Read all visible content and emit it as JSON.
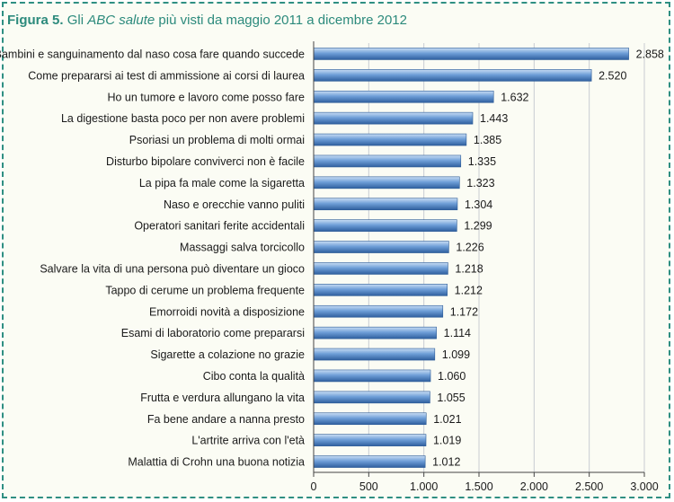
{
  "title": {
    "figure_label": "Figura 5.",
    "prefix": "Gli",
    "italic": "ABC salute",
    "suffix": "più visti da maggio 2011 a dicembre 2012"
  },
  "colors": {
    "frame": "#2f8f82",
    "title": "#2c8a7c",
    "bar_top": "#c9ddf4",
    "bar_mid": "#6f9fd8",
    "bar_bottom": "#2f5f9e",
    "gridline": "#c8ccd2",
    "text": "#1a1a1a"
  },
  "chart_data": {
    "type": "bar",
    "orientation": "horizontal",
    "categories": [
      "Bambini e sanguinamento dal naso cosa fare quando succede",
      "Come prepararsi ai test di ammissione ai corsi di laurea",
      "Ho un tumore e lavoro come posso fare",
      "La digestione basta poco per non avere problemi",
      "Psoriasi un problema di molti ormai",
      "Disturbo bipolare conviverci non è facile",
      "La pipa fa male come la sigaretta",
      "Naso e orecchie vanno puliti",
      "Operatori sanitari ferite accidentali",
      "Massaggi salva torcicollo",
      "Salvare la vita di una persona può diventare un gioco",
      "Tappo di cerume un problema frequente",
      "Emorroidi novità a disposizione",
      "Esami di laboratorio come prepararsi",
      "Sigarette a colazione no grazie",
      "Cibo conta la qualità",
      "Frutta e verdura allungano la vita",
      "Fa bene andare a nanna presto",
      "L'artrite arriva con l'età",
      "Malattia di Crohn una buona notizia"
    ],
    "values": [
      2858,
      2520,
      1632,
      1443,
      1385,
      1335,
      1323,
      1304,
      1299,
      1226,
      1218,
      1212,
      1172,
      1114,
      1099,
      1060,
      1055,
      1021,
      1019,
      1012
    ],
    "value_labels": [
      "2.858",
      "2.520",
      "1.632",
      "1.443",
      "1.385",
      "1.335",
      "1.323",
      "1.304",
      "1.299",
      "1.226",
      "1.218",
      "1.212",
      "1.172",
      "1.114",
      "1.099",
      "1.060",
      "1.055",
      "1.021",
      "1.019",
      "1.012"
    ],
    "xlim": [
      0,
      3000
    ],
    "x_ticks": [
      0,
      500,
      1000,
      1500,
      2000,
      2500,
      3000
    ],
    "x_tick_labels": [
      "0",
      "500",
      "1.000",
      "1.500",
      "2.000",
      "2.500",
      "3.000"
    ],
    "grid": "vertical",
    "legend": "none"
  }
}
